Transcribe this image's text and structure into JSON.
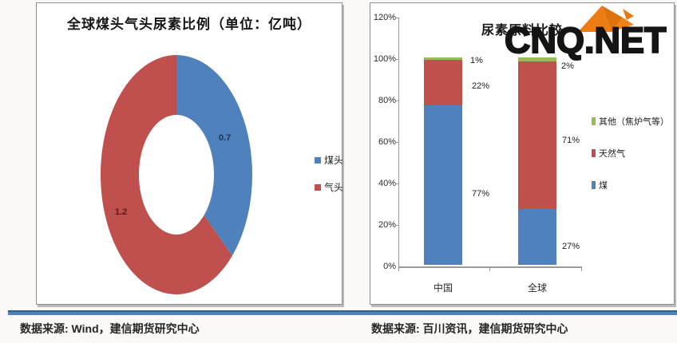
{
  "watermark": {
    "text": "CNQ.NET",
    "logo_color": "#e8790f"
  },
  "sources": {
    "left": "数据来源: Wind，建信期货研究中心",
    "right": "数据来源: 百川资讯，建信期货研究中心"
  },
  "accent": {
    "rule_color": "#4f81bd"
  },
  "chart_data": [
    {
      "type": "pie",
      "donut": true,
      "title": "全球煤头气头尿素比例（单位：亿吨）",
      "categories": [
        "煤头",
        "气头"
      ],
      "values": [
        0.7,
        1.2
      ],
      "labels": [
        "0.7",
        "1.2"
      ],
      "colors": [
        "#4f81bd",
        "#c0504d"
      ],
      "legend_position": "right"
    },
    {
      "type": "bar",
      "stacked": true,
      "title": "尿素原料比较",
      "categories": [
        "中国",
        "全球"
      ],
      "series": [
        {
          "name": "煤",
          "color": "#4f81bd",
          "values": [
            77,
            27
          ]
        },
        {
          "name": "天然气",
          "color": "#c0504d",
          "values": [
            22,
            71
          ]
        },
        {
          "name": "其他（焦炉气等）",
          "color": "#9bbb59",
          "values": [
            1,
            2
          ]
        }
      ],
      "value_labels": [
        [
          "1%",
          "22%",
          "77%"
        ],
        [
          "2%",
          "71%",
          "27%"
        ]
      ],
      "ytick_labels": [
        "120%",
        "100%",
        "80%",
        "60%",
        "40%",
        "20%",
        "0%"
      ],
      "ylim": [
        0,
        120
      ],
      "grid": false,
      "legend_position": "right"
    }
  ]
}
